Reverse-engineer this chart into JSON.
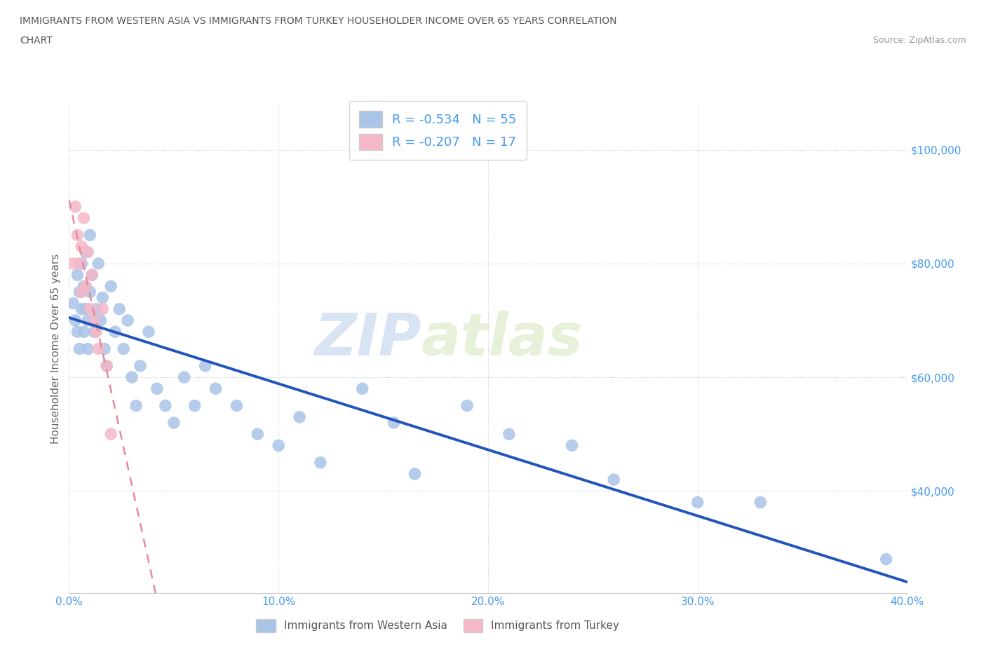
{
  "title_line1": "IMMIGRANTS FROM WESTERN ASIA VS IMMIGRANTS FROM TURKEY HOUSEHOLDER INCOME OVER 65 YEARS CORRELATION",
  "title_line2": "CHART",
  "source_text": "Source: ZipAtlas.com",
  "ylabel": "Householder Income Over 65 years",
  "xlim": [
    0.0,
    0.4
  ],
  "ylim": [
    22000,
    108000
  ],
  "xtick_labels": [
    "0.0%",
    "",
    "",
    "",
    "10.0%",
    "",
    "",
    "",
    "20.0%",
    "",
    "",
    "",
    "30.0%",
    "",
    "",
    "",
    "40.0%"
  ],
  "xtick_values": [
    0.0,
    0.025,
    0.05,
    0.075,
    0.1,
    0.125,
    0.15,
    0.175,
    0.2,
    0.225,
    0.25,
    0.275,
    0.3,
    0.325,
    0.35,
    0.375,
    0.4
  ],
  "ytick_labels": [
    "$40,000",
    "$60,000",
    "$80,000",
    "$100,000"
  ],
  "ytick_values": [
    40000,
    60000,
    80000,
    100000
  ],
  "r_blue": -0.534,
  "n_blue": 55,
  "r_pink": -0.207,
  "n_pink": 17,
  "color_blue": "#aac4e8",
  "color_pink": "#f5b8c8",
  "line_blue": "#2255bb",
  "line_pink": "#e88898",
  "legend_label_blue": "Immigrants from Western Asia",
  "legend_label_pink": "Immigrants from Turkey",
  "watermark_zip": "ZIP",
  "watermark_atlas": "atlas",
  "title_color": "#555555",
  "axis_color": "#4499ee",
  "background_color": "#ffffff",
  "blue_x": [
    0.002,
    0.003,
    0.004,
    0.004,
    0.005,
    0.005,
    0.006,
    0.006,
    0.007,
    0.007,
    0.008,
    0.008,
    0.009,
    0.009,
    0.01,
    0.01,
    0.011,
    0.012,
    0.013,
    0.014,
    0.015,
    0.016,
    0.017,
    0.018,
    0.02,
    0.022,
    0.024,
    0.026,
    0.028,
    0.03,
    0.032,
    0.034,
    0.038,
    0.042,
    0.046,
    0.05,
    0.055,
    0.06,
    0.065,
    0.07,
    0.08,
    0.09,
    0.1,
    0.11,
    0.12,
    0.14,
    0.155,
    0.165,
    0.19,
    0.21,
    0.24,
    0.26,
    0.3,
    0.33,
    0.39
  ],
  "blue_y": [
    73000,
    70000,
    78000,
    68000,
    75000,
    65000,
    72000,
    80000,
    76000,
    68000,
    82000,
    72000,
    70000,
    65000,
    85000,
    75000,
    78000,
    68000,
    72000,
    80000,
    70000,
    74000,
    65000,
    62000,
    76000,
    68000,
    72000,
    65000,
    70000,
    60000,
    55000,
    62000,
    68000,
    58000,
    55000,
    52000,
    60000,
    55000,
    62000,
    58000,
    55000,
    50000,
    48000,
    53000,
    45000,
    58000,
    52000,
    43000,
    55000,
    50000,
    48000,
    42000,
    38000,
    38000,
    28000
  ],
  "pink_x": [
    0.002,
    0.003,
    0.004,
    0.005,
    0.006,
    0.006,
    0.007,
    0.008,
    0.009,
    0.01,
    0.011,
    0.012,
    0.013,
    0.014,
    0.016,
    0.018,
    0.02
  ],
  "pink_y": [
    80000,
    90000,
    85000,
    80000,
    83000,
    75000,
    88000,
    76000,
    82000,
    72000,
    78000,
    70000,
    68000,
    65000,
    72000,
    62000,
    50000
  ]
}
